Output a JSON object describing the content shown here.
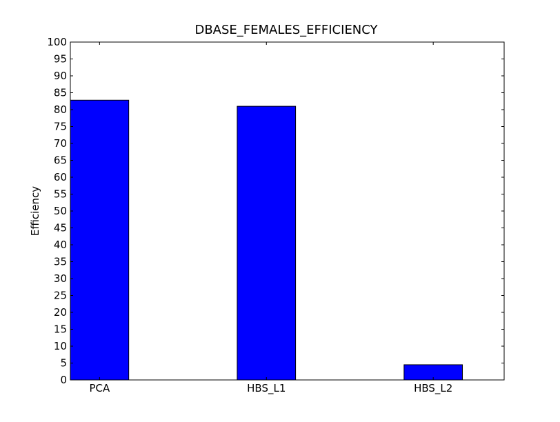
{
  "chart_data": {
    "type": "bar",
    "title": "DBASE_FEMALES_EFFICIENCY",
    "xlabel": "",
    "ylabel": "Efficiency",
    "categories": [
      "PCA",
      "HBS_L1",
      "HBS_L2"
    ],
    "values": [
      82.8,
      81.0,
      4.5
    ],
    "ylim": [
      0,
      100
    ],
    "ytick_step": 5,
    "bar_color": "#0000ff",
    "edge_color": "#000000",
    "grid": false,
    "legend": "none"
  }
}
